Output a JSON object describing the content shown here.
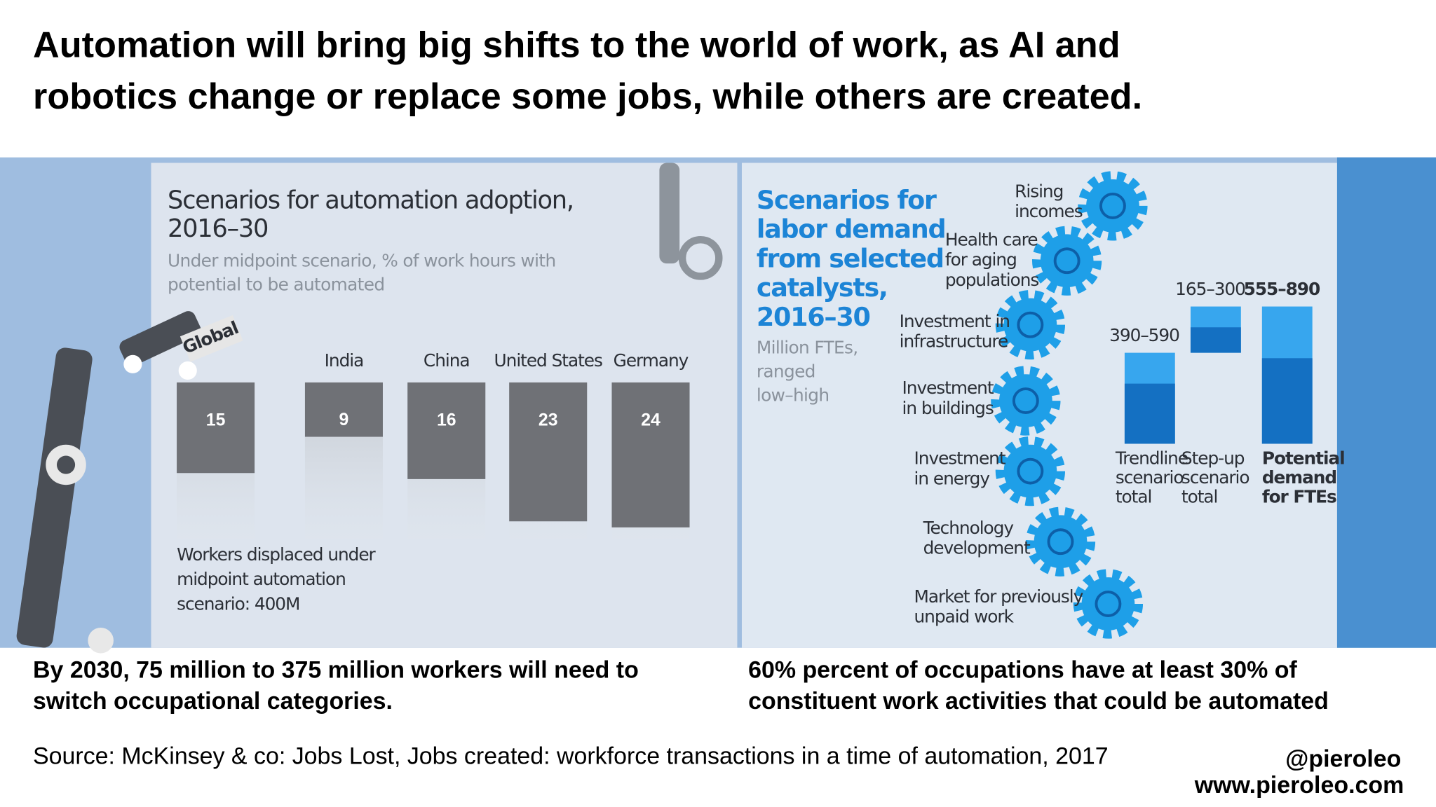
{
  "title": [
    "Automation will bring big shifts to the world of work, as AI and",
    "robotics change or replace some jobs, while others are created."
  ],
  "left_panel": {
    "title": [
      "Scenarios for automation adoption,",
      "2016–30"
    ],
    "subtitle": [
      "Under midpoint scenario, % of work hours with",
      "potential to be automated"
    ],
    "countries": [
      {
        "name": "Global",
        "value": 15
      },
      {
        "name": "India",
        "value": 9
      },
      {
        "name": "China",
        "value": 16
      },
      {
        "name": "United States",
        "value": 23
      },
      {
        "name": "Germany",
        "value": 24
      }
    ],
    "note": [
      "Workers displaced under",
      "midpoint automation",
      "scenario: 400M"
    ]
  },
  "right_panel": {
    "title": [
      "Scenarios for",
      "labor demand",
      "from selected",
      "catalysts,",
      "2016–30"
    ],
    "subtitle": [
      "Million FTEs,",
      "ranged",
      "low–high"
    ],
    "catalysts": [
      [
        "Rising",
        "incomes"
      ],
      [
        "Health care",
        "for aging",
        "populations"
      ],
      [
        "Investment in",
        "infrastructure"
      ],
      [
        "Investment",
        "in buildings"
      ],
      [
        "Investment",
        "in energy"
      ],
      [
        "Technology",
        "development"
      ],
      [
        "Market for previously",
        "unpaid work"
      ]
    ],
    "totals": [
      {
        "range": "390–590",
        "low": 390,
        "high": 590,
        "label": [
          "Trendline",
          "scenario",
          "total"
        ]
      },
      {
        "range": "165–300",
        "low": 165,
        "high": 300,
        "label": [
          "Step-up",
          "scenario",
          "total"
        ]
      },
      {
        "range": "555–890",
        "low": 555,
        "high": 890,
        "label": [
          "Potential",
          "demand",
          "for FTEs"
        ]
      }
    ]
  },
  "captions": [
    [
      "By 2030, 75 million to 375 million workers will need to",
      "switch occupational categories."
    ],
    [
      "60% percent of occupations have at least 30% of",
      "constituent work activities that could be automated"
    ]
  ],
  "source": "Source: McKinsey & co: Jobs Lost, Jobs created: workforce transactions in a time of automation, 2017",
  "handle": "@pieroleo",
  "website": "www.pieroleo.com"
}
